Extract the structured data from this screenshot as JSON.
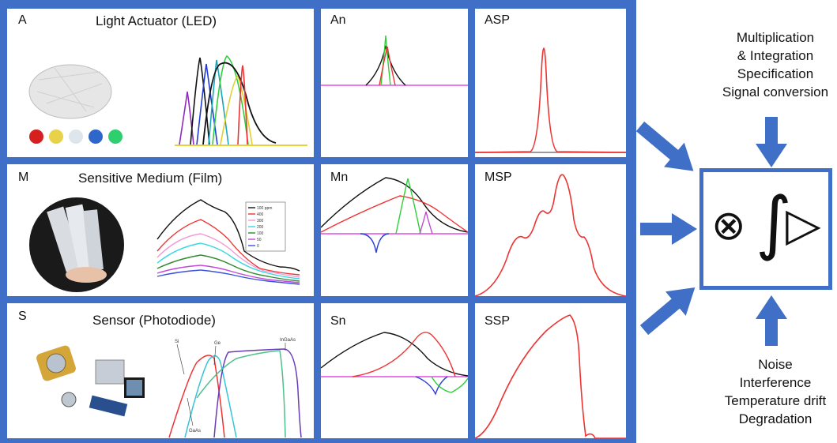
{
  "rows": [
    {
      "letter": "A",
      "title": "Light Actuator (LED)",
      "mid": "An",
      "right": "ASP"
    },
    {
      "letter": "M",
      "title": "Sensitive Medium (Film)",
      "mid": "Mn",
      "right": "MSP"
    },
    {
      "letter": "S",
      "title": "Sensor (Photodiode)",
      "mid": "Sn",
      "right": "SSP"
    }
  ],
  "film_legend": [
    "100 ppm",
    "400",
    "300",
    "200",
    "100",
    "50",
    "0"
  ],
  "sensor_labels": {
    "si": "Si",
    "ge": "Ge",
    "ingaas": "InGaAs",
    "gaas": "GaAs"
  },
  "top_text": [
    "Multiplication",
    "& Integration",
    "Specification",
    "Signal conversion"
  ],
  "bottom_text": [
    "Noise",
    "Interference",
    "Temperature drift",
    "Degradation"
  ],
  "symbols": {
    "multiply": "⊗",
    "integral": "∫",
    "triangle": "▷"
  },
  "colors": {
    "frame": "#3f6fc6",
    "arrow": "#3f6fc6"
  }
}
